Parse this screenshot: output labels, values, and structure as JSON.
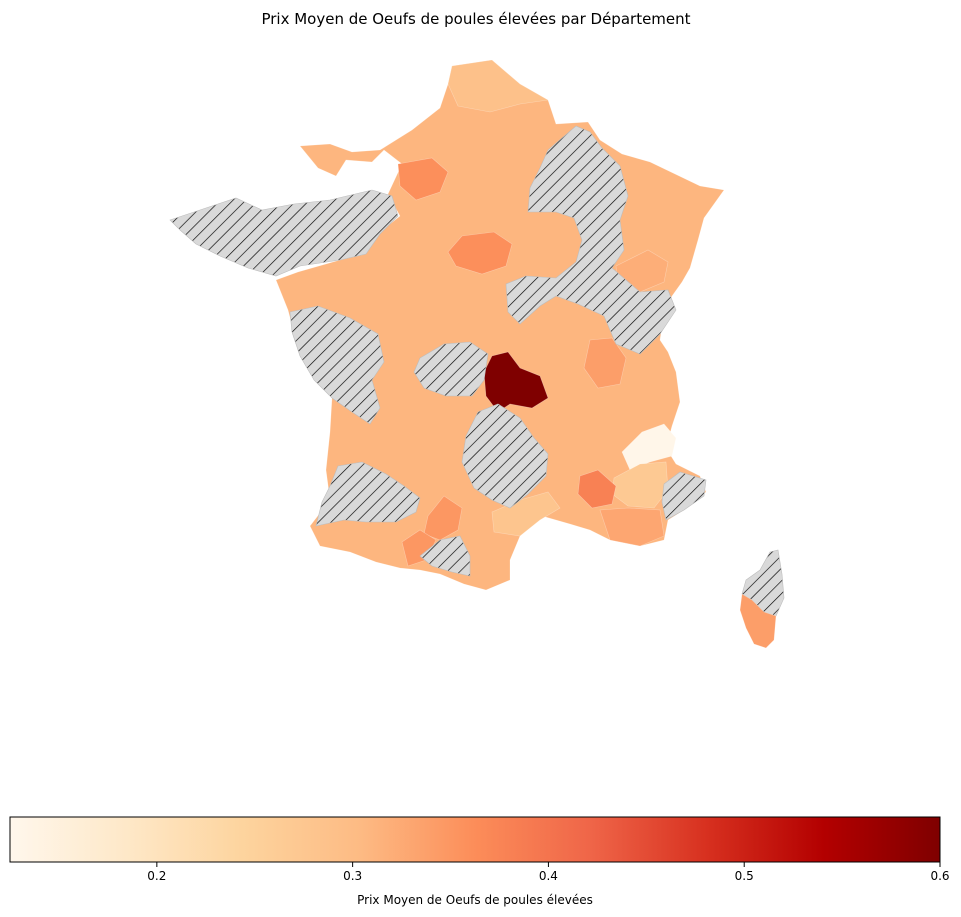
{
  "title": "Prix Moyen de Oeufs de poules élevées par Département",
  "colorbar": {
    "label": "Prix Moyen de Oeufs de poules élevées",
    "min": 0.125,
    "max": 0.6,
    "ticks": [
      0.2,
      0.3,
      0.4,
      0.5,
      0.6
    ],
    "colormap": "OrRd",
    "stops": [
      "#fff7ec",
      "#fee8c8",
      "#fdd49e",
      "#fdbb84",
      "#fc8d59",
      "#ef6548",
      "#d7301f",
      "#b30000",
      "#7f0000"
    ]
  },
  "missing_style": {
    "fill": "#d9d9d9",
    "hatch": "////",
    "hatch_color": "#000000"
  },
  "map_values": {
    "default": 0.31,
    "paris_region": 0.36,
    "orne_region": 0.36,
    "allier": 0.6,
    "loiret": 0.36,
    "haute_savoie": 0.32,
    "loire": 0.34,
    "alpes_high": 0.13,
    "var": 0.27,
    "vaucluse": 0.38,
    "gironde_south": 0.34,
    "haute_garonne": 0.35,
    "gard_area": 0.28,
    "corse_du_sud": 0.34,
    "bouches_du_rhone": 0.33,
    "nord": 0.29
  }
}
